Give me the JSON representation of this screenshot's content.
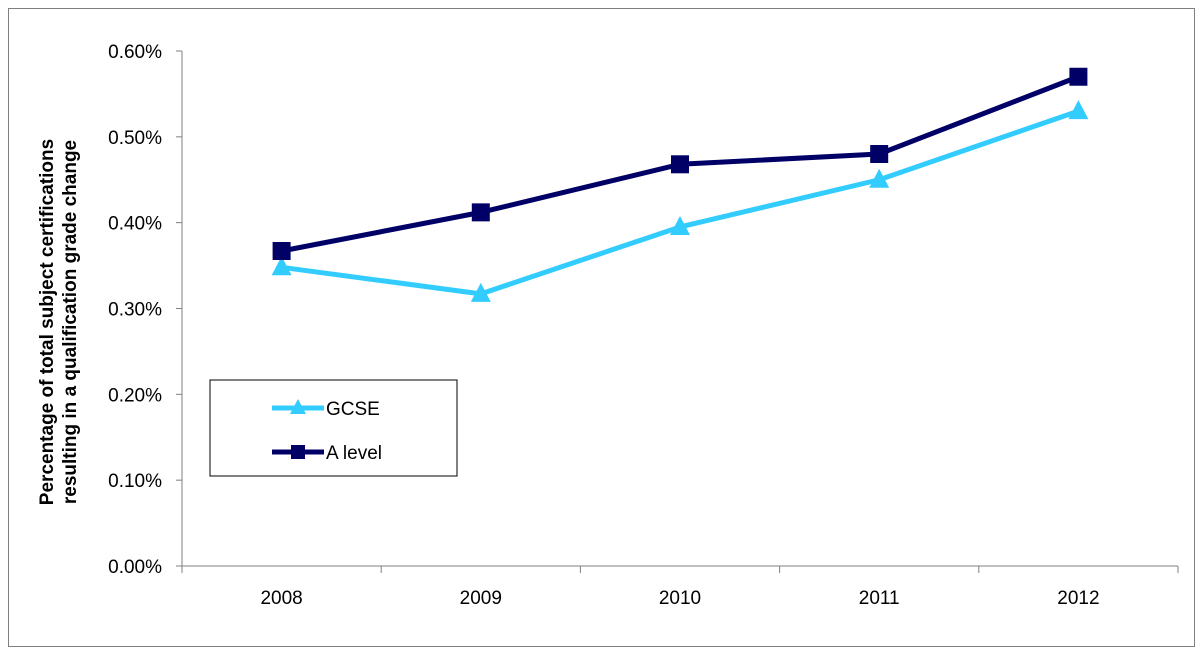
{
  "chart_data": {
    "type": "line",
    "categories": [
      "2008",
      "2009",
      "2010",
      "2011",
      "2012"
    ],
    "series": [
      {
        "name": "GCSE",
        "values": [
          0.00348,
          0.00317,
          0.00395,
          0.0045,
          0.0053
        ],
        "color": "#33ccff",
        "marker": "triangle"
      },
      {
        "name": "A level",
        "values": [
          0.00367,
          0.00412,
          0.00468,
          0.0048,
          0.0057
        ],
        "color": "#000066",
        "marker": "square"
      }
    ],
    "ylabel_line1": "Percentage of total subject  certifications",
    "ylabel_line2": "resulting  in a qualification  grade change",
    "ylim": [
      0,
      0.006
    ],
    "yticks": [
      "0.00%",
      "0.10%",
      "0.20%",
      "0.30%",
      "0.40%",
      "0.50%",
      "0.60%"
    ],
    "grid": false,
    "legend_position": "left-middle"
  }
}
